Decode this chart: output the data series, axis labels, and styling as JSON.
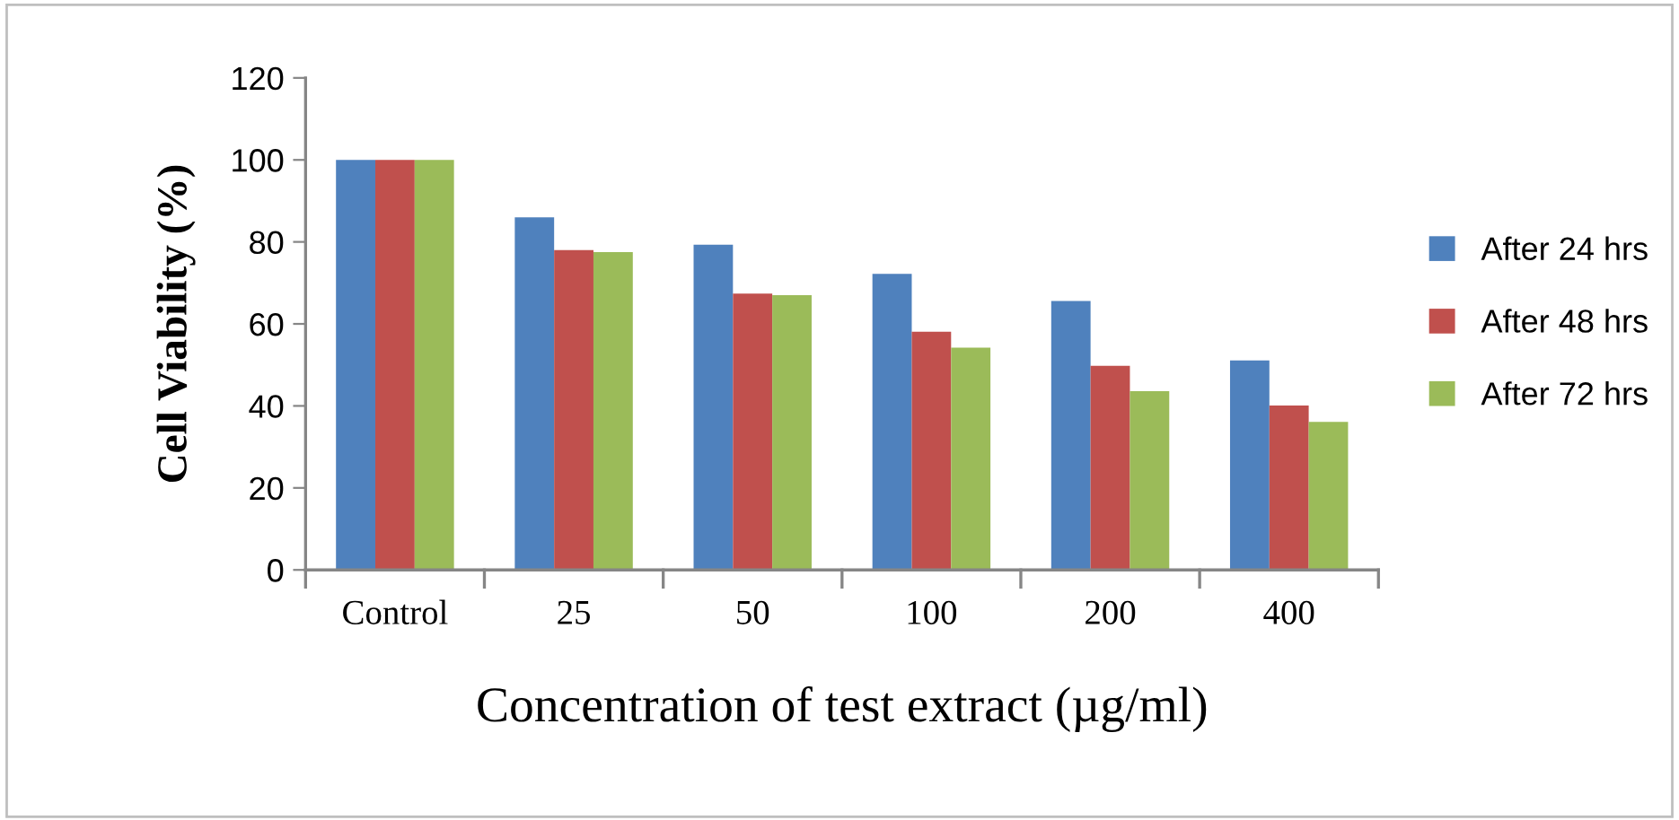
{
  "chart_data": {
    "type": "bar",
    "xlabel": "Concentration of test extract (µg/ml)",
    "ylabel": "Cell Viability (%)",
    "categories": [
      "Control",
      "25",
      "50",
      "100",
      "200",
      "400"
    ],
    "series": [
      {
        "name": "After 24 hrs",
        "color": "#4f81bd",
        "values": [
          100,
          86,
          79.3,
          72.2,
          65.6,
          51.1
        ]
      },
      {
        "name": "After 48 hrs",
        "color": "#c0504d",
        "values": [
          100,
          78,
          67.4,
          58.1,
          49.8,
          40.1
        ]
      },
      {
        "name": "After 72 hrs",
        "color": "#9bbb59",
        "values": [
          100,
          77.5,
          67,
          54.2,
          43.6,
          36.1
        ]
      }
    ],
    "ylim": [
      0,
      120
    ],
    "yticks": [
      0,
      20,
      40,
      60,
      80,
      100,
      120
    ],
    "grid": false,
    "legend": "right"
  }
}
